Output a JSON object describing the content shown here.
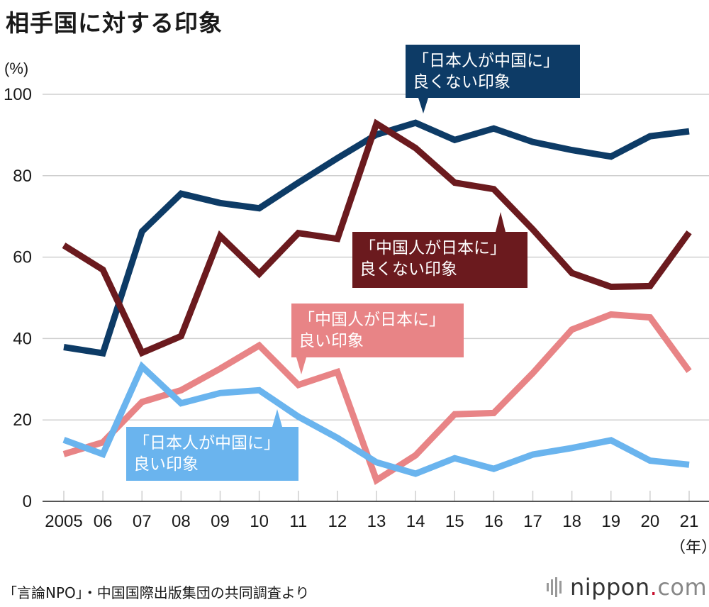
{
  "title": "相手国に対する印象",
  "y_unit": "(%)",
  "x_unit": "（年）",
  "source": "「言論NPO」・中国国際出版集団の共同調査より",
  "brand": {
    "name": "nippon",
    "dot": ".",
    "tld": "com"
  },
  "chart_data": {
    "type": "line",
    "x": [
      "2005",
      "06",
      "07",
      "08",
      "09",
      "10",
      "11",
      "12",
      "13",
      "14",
      "15",
      "16",
      "17",
      "18",
      "19",
      "20",
      "21"
    ],
    "ylim": [
      0,
      100
    ],
    "yticks": [
      0,
      20,
      40,
      60,
      80,
      100
    ],
    "grid": true,
    "series": [
      {
        "name": "「日本人が中国に」良くない印象",
        "label_lines": [
          "「日本人が中国に」",
          "良くない印象"
        ],
        "color": "#0d3b66",
        "values": [
          37.9,
          36.4,
          66.3,
          75.6,
          73.3,
          72.0,
          78.3,
          84.3,
          90.1,
          93.0,
          88.8,
          91.6,
          88.3,
          86.3,
          84.7,
          89.7,
          90.9
        ]
      },
      {
        "name": "「中国人が日本に」良くない印象",
        "label_lines": [
          "「中国人が日本に」",
          "良くない印象"
        ],
        "color": "#6b1a1e",
        "values": [
          62.9,
          56.9,
          36.5,
          40.6,
          65.2,
          55.9,
          65.9,
          64.5,
          92.8,
          86.8,
          78.3,
          76.7,
          66.8,
          56.1,
          52.7,
          52.9,
          66.1
        ]
      },
      {
        "name": "「中国人が日本に」良い印象",
        "label_lines": [
          "「中国人が日本に」",
          "良い印象"
        ],
        "color": "#e88486",
        "values": [
          11.6,
          14.5,
          24.4,
          27.3,
          32.6,
          38.3,
          28.6,
          31.8,
          5.2,
          11.3,
          21.4,
          21.7,
          31.5,
          42.2,
          45.9,
          45.2,
          32.0
        ]
      },
      {
        "name": "「日本人が中国に」良い印象",
        "label_lines": [
          "「日本人が中国に」",
          "良い印象"
        ],
        "color": "#6ab4ee",
        "values": [
          15.1,
          11.6,
          33.1,
          24.1,
          26.6,
          27.3,
          20.8,
          15.6,
          9.6,
          6.8,
          10.6,
          8.0,
          11.5,
          13.1,
          15.0,
          10.0,
          9.0
        ]
      }
    ]
  }
}
